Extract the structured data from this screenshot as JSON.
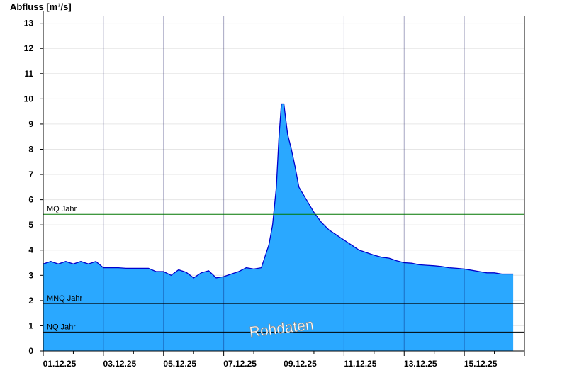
{
  "chart_data": {
    "type": "area",
    "ylabel": "Abfluss [m³/s]",
    "ylim": [
      0,
      13.3
    ],
    "yticks": [
      0,
      1,
      2,
      3,
      4,
      5,
      6,
      7,
      8,
      9,
      10,
      11,
      12,
      13
    ],
    "xlim": [
      "01.12.25 00:00",
      "17.12.25 00:00"
    ],
    "xticks": [
      "01.12.25",
      "03.12.25",
      "05.12.25",
      "07.12.25",
      "09.12.25",
      "11.12.25",
      "13.12.25",
      "15.12.25"
    ],
    "grid": true,
    "colors": {
      "fill": "#2aa8ff",
      "line": "#0000cc",
      "mq_line": "#007700",
      "ref_line": "#000000"
    },
    "reference_lines": [
      {
        "name": "MQ Jahr",
        "value": 5.42
      },
      {
        "name": "MNQ Jahr",
        "value": 1.88
      },
      {
        "name": "NQ Jahr",
        "value": 0.75
      }
    ],
    "watermark": "Rohdaten",
    "series": [
      {
        "x": [
          "01.12.25 00:00",
          "01.12.25 06:00",
          "01.12.25 12:00",
          "01.12.25 18:00",
          "02.12.25 00:00",
          "02.12.25 06:00",
          "02.12.25 12:00",
          "02.12.25 18:00",
          "03.12.25 00:00",
          "03.12.25 06:00",
          "03.12.25 12:00",
          "03.12.25 18:00",
          "04.12.25 00:00",
          "04.12.25 06:00",
          "04.12.25 12:00",
          "04.12.25 18:00",
          "05.12.25 00:00",
          "05.12.25 06:00",
          "05.12.25 12:00",
          "05.12.25 18:00",
          "06.12.25 00:00",
          "06.12.25 06:00",
          "06.12.25 12:00",
          "06.12.25 18:00",
          "07.12.25 00:00",
          "07.12.25 06:00",
          "07.12.25 12:00",
          "07.12.25 18:00",
          "08.12.25 00:00",
          "08.12.25 06:00",
          "08.12.25 12:00",
          "08.12.25 15:00",
          "08.12.25 18:00",
          "08.12.25 20:00",
          "08.12.25 22:00",
          "09.12.25 00:00",
          "09.12.25 03:00",
          "09.12.25 06:00",
          "09.12.25 09:00",
          "09.12.25 12:00",
          "09.12.25 18:00",
          "10.12.25 00:00",
          "10.12.25 06:00",
          "10.12.25 12:00",
          "10.12.25 18:00",
          "11.12.25 00:00",
          "11.12.25 06:00",
          "11.12.25 12:00",
          "11.12.25 18:00",
          "12.12.25 00:00",
          "12.12.25 06:00",
          "12.12.25 12:00",
          "12.12.25 18:00",
          "13.12.25 00:00",
          "13.12.25 06:00",
          "13.12.25 12:00",
          "13.12.25 18:00",
          "14.12.25 00:00",
          "14.12.25 06:00",
          "14.12.25 12:00",
          "14.12.25 18:00",
          "15.12.25 00:00",
          "15.12.25 06:00",
          "15.12.25 12:00",
          "15.12.25 18:00",
          "16.12.25 00:00",
          "16.12.25 06:00",
          "16.12.25 12:00",
          "16.12.25 15:00"
        ],
        "y": [
          3.45,
          3.55,
          3.45,
          3.55,
          3.45,
          3.55,
          3.45,
          3.55,
          3.3,
          3.3,
          3.3,
          3.28,
          3.28,
          3.28,
          3.28,
          3.15,
          3.15,
          3.0,
          3.22,
          3.12,
          2.9,
          3.1,
          3.18,
          2.9,
          2.95,
          3.05,
          3.15,
          3.3,
          3.25,
          3.3,
          4.2,
          5.0,
          6.5,
          8.4,
          9.8,
          9.8,
          8.6,
          8.0,
          7.3,
          6.5,
          6.0,
          5.5,
          5.1,
          4.8,
          4.6,
          4.4,
          4.2,
          4.0,
          3.9,
          3.8,
          3.72,
          3.68,
          3.58,
          3.5,
          3.48,
          3.42,
          3.4,
          3.38,
          3.35,
          3.3,
          3.28,
          3.25,
          3.2,
          3.15,
          3.1,
          3.1,
          3.05,
          3.05,
          3.05
        ]
      }
    ]
  }
}
